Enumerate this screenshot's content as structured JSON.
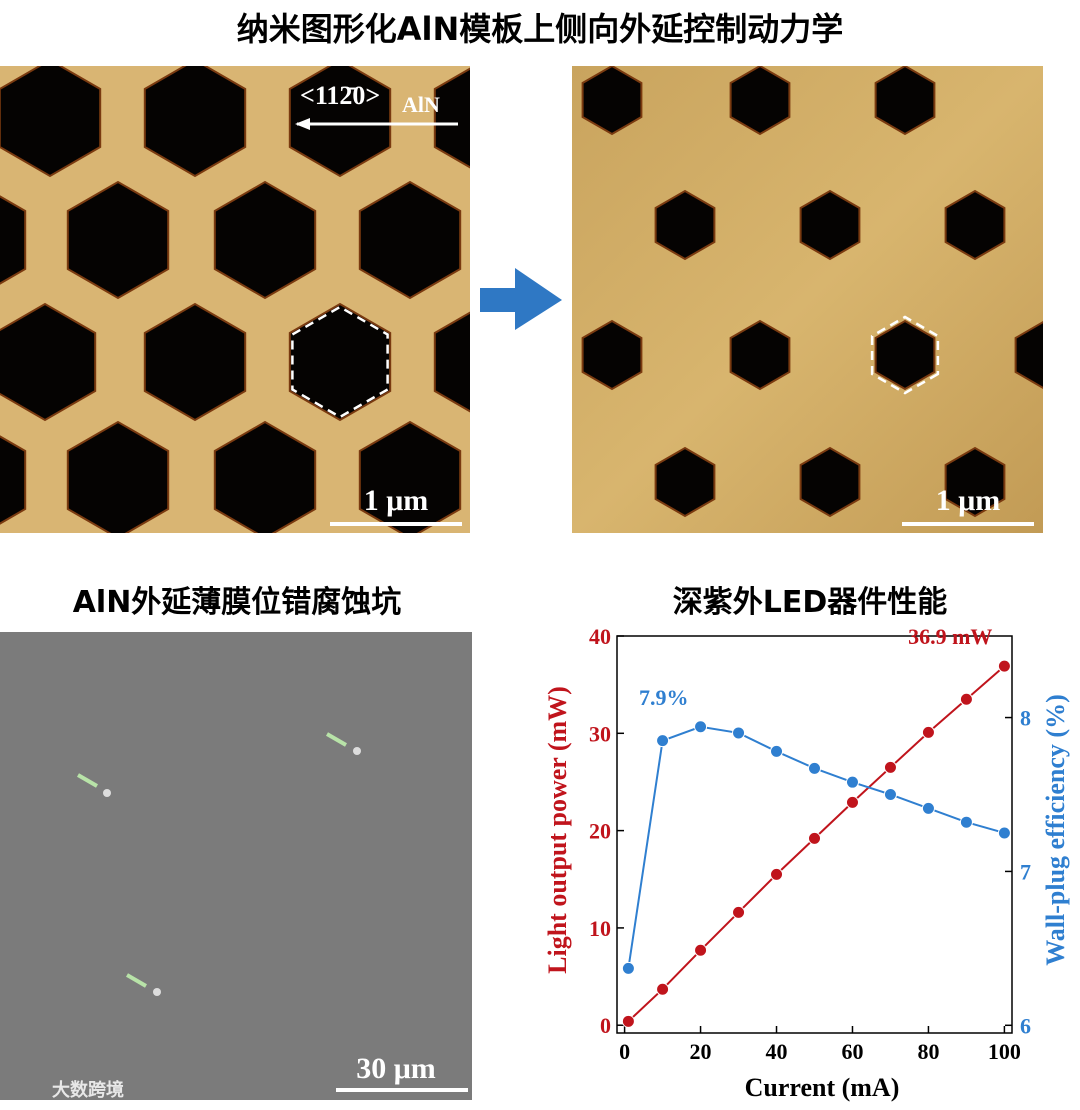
{
  "title": "纳米图形化AlN模板上侧向外延控制动力学",
  "afm_before": {
    "direction": "<112̄0>",
    "direction_sub": "AlN",
    "scale_bar": "1 μm"
  },
  "afm_after": {
    "scale_bar": "1 μm"
  },
  "sem": {
    "title": "AlN外延薄膜位错腐蚀坑",
    "scale_bar": "30 μm"
  },
  "watermark": "大数跨境",
  "chart_data": {
    "type": "line",
    "title": "深紫外LED器件性能",
    "x_label": "Current (mA)",
    "y_label": "Light output power (mW)",
    "y2_label": "Wall-plug efficiency (%)",
    "x": [
      1,
      10,
      20,
      30,
      40,
      50,
      60,
      70,
      80,
      90,
      100
    ],
    "series": [
      {
        "name": "Light output power",
        "color": "#c0141c",
        "values": [
          0.4,
          3.7,
          7.7,
          11.6,
          15.5,
          19.2,
          22.9,
          26.5,
          30.1,
          33.5,
          36.9
        ],
        "value_labels": [
          null,
          null,
          null,
          null,
          null,
          null,
          null,
          null,
          null,
          null,
          "36.9 mW"
        ]
      },
      {
        "name": "Wall-plug efficiency",
        "color": "#2f7fd0",
        "axis": "y2",
        "values": [
          6.37,
          7.85,
          7.94,
          7.9,
          7.78,
          7.67,
          7.58,
          7.5,
          7.41,
          7.32,
          7.25
        ],
        "value_labels": [
          null,
          null,
          "7.9%",
          null,
          null,
          null,
          null,
          null,
          null,
          null,
          null
        ]
      }
    ],
    "xlim": [
      -2,
      102
    ],
    "xticks": [
      0,
      20,
      40,
      60,
      80,
      100
    ],
    "ylim": [
      -0.8,
      40
    ],
    "yticks": [
      0,
      10,
      20,
      30,
      40
    ],
    "y2lim": [
      5.95,
      8.53
    ],
    "y2ticks": [
      6,
      7,
      8
    ]
  }
}
